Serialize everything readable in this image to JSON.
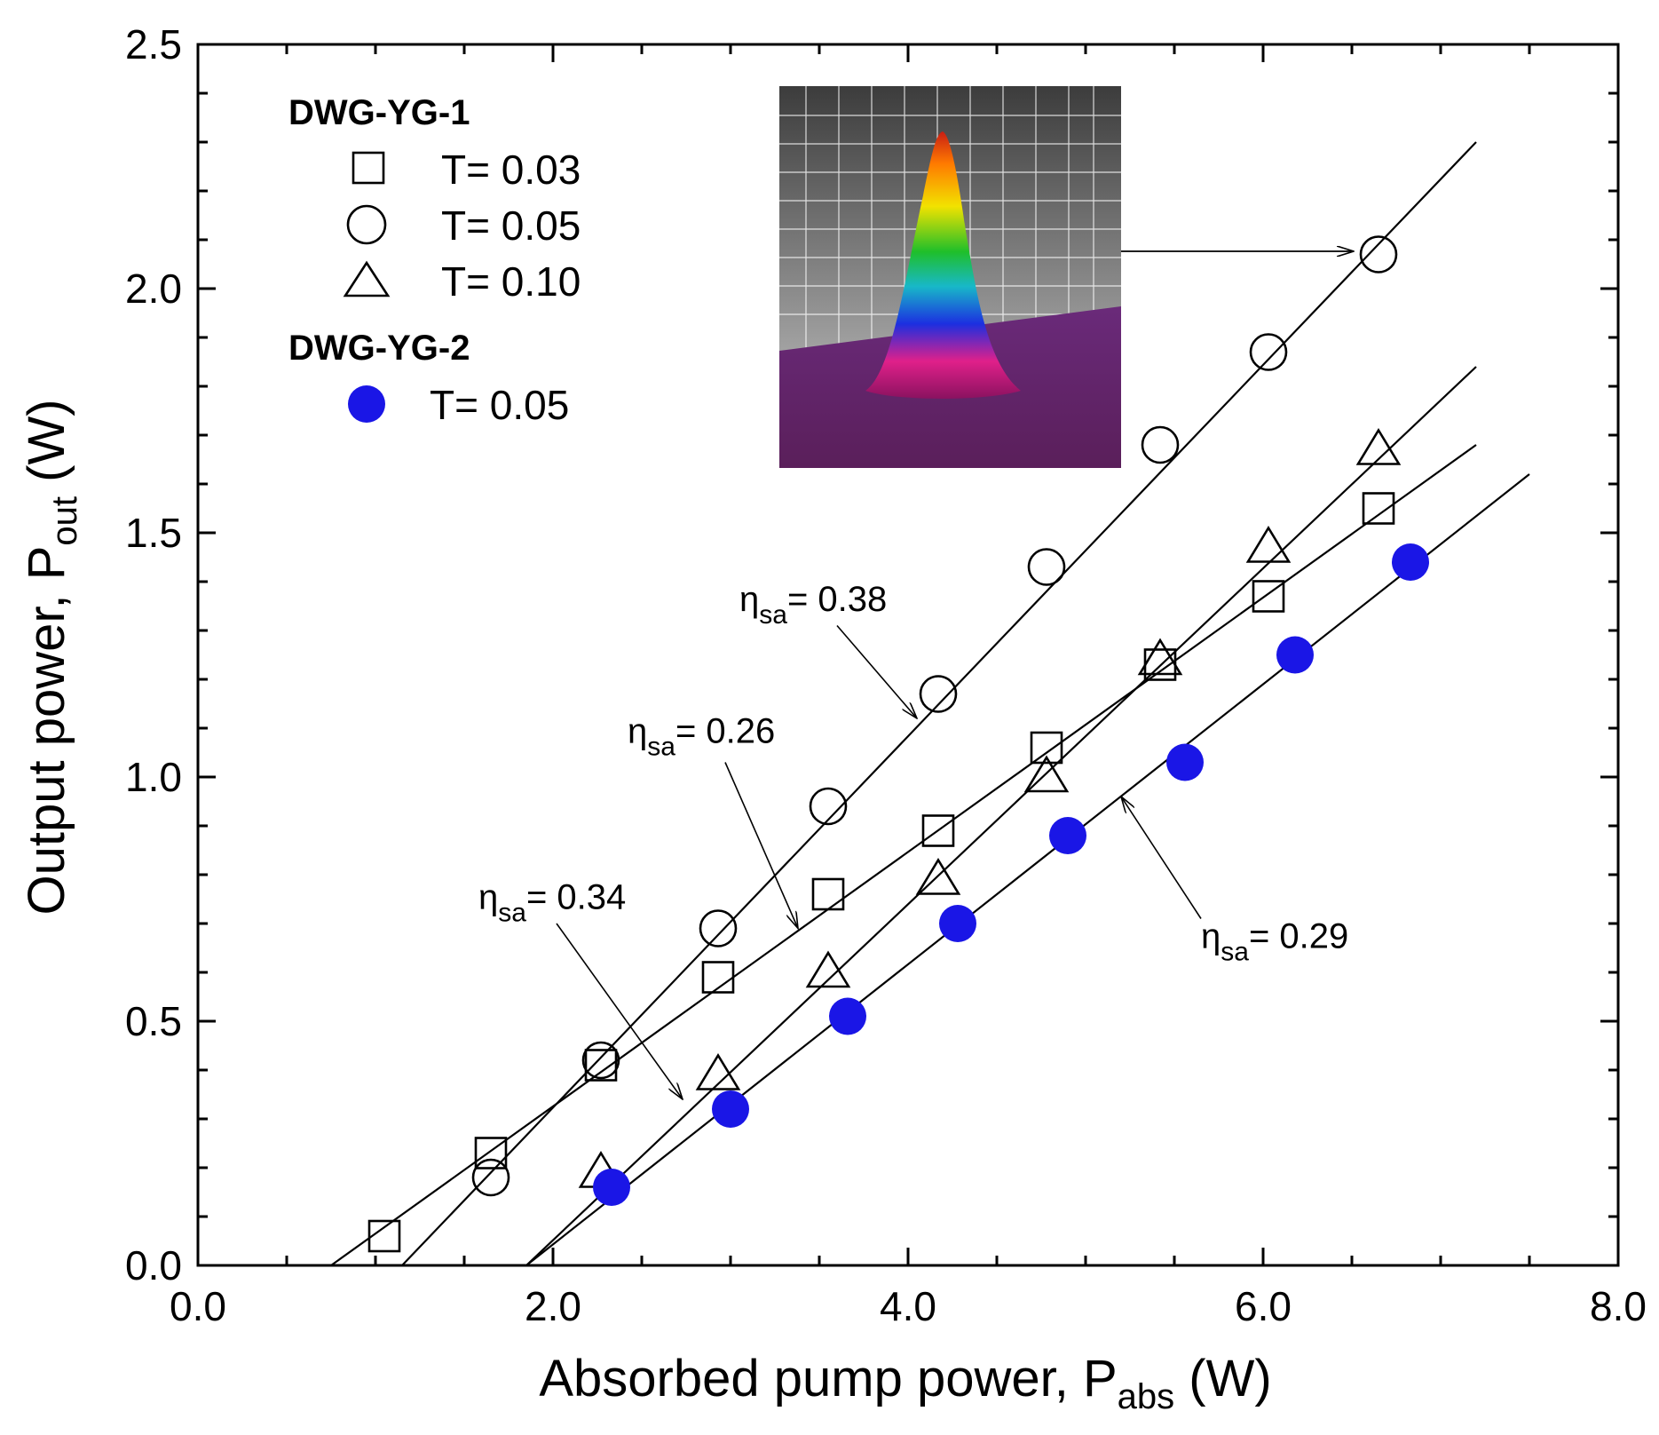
{
  "chart_data": {
    "type": "scatter",
    "xlabel": "Absorbed pump power, P",
    "xlabel_sub": "abs",
    "xlabel_unit": " (W)",
    "ylabel": "Output power, P",
    "ylabel_sub": "out",
    "ylabel_unit": " (W)",
    "xlim": [
      0,
      8
    ],
    "ylim": [
      0,
      2.5
    ],
    "xticks": [
      0,
      2,
      4,
      6,
      8
    ],
    "xtick_labels": [
      "0.0",
      "2.0",
      "4.0",
      "6.0",
      "8.0"
    ],
    "yticks": [
      0,
      0.5,
      1.0,
      1.5,
      2.0,
      2.5
    ],
    "ytick_labels": [
      "0.0",
      "0.5",
      "1.0",
      "1.5",
      "2.0",
      "2.5"
    ],
    "x_minor_step": 0.5,
    "y_minor_step": 0.1,
    "legend": {
      "position": "top-left",
      "groups": [
        {
          "title": "DWG-YG-1",
          "entries": [
            {
              "label": "T= 0.03",
              "marker": "square"
            },
            {
              "label": "T= 0.05",
              "marker": "circle"
            },
            {
              "label": "T= 0.10",
              "marker": "triangle"
            }
          ]
        },
        {
          "title": "DWG-YG-2",
          "entries": [
            {
              "label": "T= 0.05",
              "marker": "filled-circle"
            }
          ]
        }
      ]
    },
    "series": [
      {
        "name": "DWG-YG-1 T=0.03",
        "marker": "square",
        "color": "#000000",
        "filled": false,
        "x": [
          1.05,
          1.65,
          2.27,
          2.93,
          3.55,
          4.17,
          4.78,
          5.42,
          6.03,
          6.65
        ],
        "y": [
          0.06,
          0.23,
          0.41,
          0.59,
          0.76,
          0.89,
          1.06,
          1.23,
          1.37,
          1.55
        ],
        "fit": {
          "x": [
            0.75,
            7.2
          ],
          "y": [
            0.0,
            1.68
          ]
        }
      },
      {
        "name": "DWG-YG-1 T=0.05",
        "marker": "circle",
        "color": "#000000",
        "filled": false,
        "x": [
          1.65,
          2.27,
          2.93,
          3.55,
          4.17,
          4.78,
          5.42,
          6.03,
          6.65
        ],
        "y": [
          0.18,
          0.42,
          0.69,
          0.94,
          1.17,
          1.43,
          1.68,
          1.87,
          2.07
        ],
        "fit": {
          "x": [
            1.15,
            7.2
          ],
          "y": [
            0.0,
            2.3
          ]
        }
      },
      {
        "name": "DWG-YG-1 T=0.10",
        "marker": "triangle",
        "color": "#000000",
        "filled": false,
        "x": [
          2.27,
          2.93,
          3.55,
          4.17,
          4.78,
          5.42,
          6.03,
          6.65
        ],
        "y": [
          0.19,
          0.39,
          0.6,
          0.79,
          1.0,
          1.24,
          1.47,
          1.67
        ],
        "fit": {
          "x": [
            1.85,
            7.2
          ],
          "y": [
            0.0,
            1.84
          ]
        }
      },
      {
        "name": "DWG-YG-2 T=0.05",
        "marker": "filled-circle",
        "color": "#1a16e6",
        "filled": true,
        "x": [
          2.33,
          3.0,
          3.66,
          4.28,
          4.9,
          5.56,
          6.18,
          6.83
        ],
        "y": [
          0.16,
          0.32,
          0.51,
          0.7,
          0.88,
          1.03,
          1.25,
          1.44
        ],
        "fit": {
          "x": [
            1.85,
            7.5
          ],
          "y": [
            0.0,
            1.62
          ]
        }
      }
    ],
    "annotations": [
      {
        "eta": "η",
        "sub": "sa",
        "value": "= 0.38",
        "text_at": [
          3.05,
          1.34
        ],
        "arrow_from": [
          3.6,
          1.31
        ],
        "arrow_to": [
          4.05,
          1.12
        ]
      },
      {
        "eta": "η",
        "sub": "sa",
        "value": "= 0.26",
        "text_at": [
          2.42,
          1.07
        ],
        "arrow_from": [
          2.97,
          1.03
        ],
        "arrow_to": [
          3.38,
          0.69
        ]
      },
      {
        "eta": "η",
        "sub": "sa",
        "value": "= 0.34",
        "text_at": [
          1.58,
          0.73
        ],
        "arrow_from": [
          2.02,
          0.7
        ],
        "arrow_to": [
          2.73,
          0.34
        ]
      },
      {
        "eta": "η",
        "sub": "sa",
        "value": "= 0.29",
        "text_at": [
          5.65,
          0.65
        ],
        "arrow_from": [
          5.65,
          0.71
        ],
        "arrow_to": [
          5.2,
          0.96
        ]
      }
    ],
    "inset": {
      "description": "beam profile",
      "arrow_to": [
        6.55,
        2.07
      ]
    }
  }
}
